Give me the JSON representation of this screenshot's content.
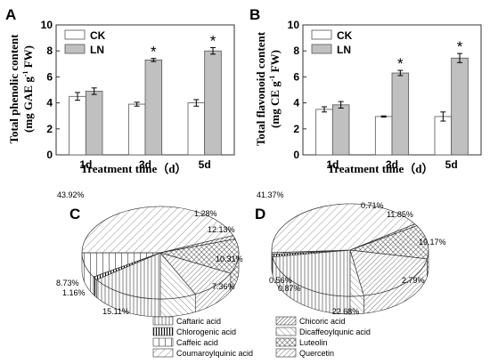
{
  "chart_data": [
    {
      "panel": "A",
      "type": "bar",
      "categories": [
        "1d",
        "3d",
        "5d"
      ],
      "series": [
        {
          "name": "CK",
          "values": [
            4.5,
            3.9,
            4.0
          ],
          "errors": [
            0.3,
            0.15,
            0.25
          ],
          "fill": "#ffffff"
        },
        {
          "name": "LN",
          "values": [
            4.9,
            7.3,
            8.0
          ],
          "errors": [
            0.25,
            0.12,
            0.25
          ],
          "fill": "#c0c0c0"
        }
      ],
      "significance": [
        "",
        "*",
        "*"
      ],
      "xlabel": "Treatment time（d）",
      "ylabel": "Total phenolic content",
      "ylabel2": "(mg GAE g",
      "ylabel_sup": "-1",
      "ylabel3": " FW)",
      "ylim": [
        0,
        10
      ],
      "yticks": [
        "0",
        "2",
        "4",
        "6",
        "8",
        "10"
      ],
      "legend_position": "top-left"
    },
    {
      "panel": "B",
      "type": "bar",
      "categories": [
        "1d",
        "3d",
        "5d"
      ],
      "series": [
        {
          "name": "CK",
          "values": [
            3.5,
            2.95,
            2.95
          ],
          "errors": [
            0.2,
            0.05,
            0.35
          ],
          "fill": "#ffffff"
        },
        {
          "name": "LN",
          "values": [
            3.85,
            6.3,
            7.45
          ],
          "errors": [
            0.25,
            0.2,
            0.35
          ],
          "fill": "#c0c0c0"
        }
      ],
      "significance": [
        "",
        "*",
        "*"
      ],
      "xlabel": "Treatment time（d）",
      "ylabel": "Total flavonoid content",
      "ylabel2": "(mg CE g",
      "ylabel_sup": "-1",
      "ylabel3": " FW)",
      "ylim": [
        0,
        10
      ],
      "yticks": [
        "0",
        "2",
        "4",
        "6",
        "8",
        "10"
      ],
      "legend_position": "top-left"
    },
    {
      "panel": "C",
      "type": "pie",
      "slices": [
        {
          "label": "Caftaric acid",
          "value": 15.11,
          "text": "15.11%"
        },
        {
          "label": "Chlorogenic acid",
          "value": 1.16,
          "text": "1.16%"
        },
        {
          "label": "Caffeic acid",
          "value": 8.73,
          "text": "8.73%"
        },
        {
          "label": "Coumaroylquinic acid",
          "value": 43.92,
          "text": "43.92%"
        },
        {
          "label": "Chicoric acid",
          "value": 1.28,
          "text": "1.28%"
        },
        {
          "label": "Luteolin",
          "value": 12.13,
          "text": "12.13%"
        },
        {
          "label": "Quercetin",
          "value": 10.31,
          "text": "10.31%"
        },
        {
          "label": "Dicaffeoylqunic acid",
          "value": 7.36,
          "text": "7.36%"
        }
      ]
    },
    {
      "panel": "D",
      "type": "pie",
      "slices": [
        {
          "label": "Caftaric acid",
          "value": 22.68,
          "text": "22.68%"
        },
        {
          "label": "Chlorogenic acid",
          "value": 0.87,
          "text": "0.87%"
        },
        {
          "label": "Caffeic acid",
          "value": 0.56,
          "text": "0.56%"
        },
        {
          "label": "Coumaroylquinic acid",
          "value": 41.37,
          "text": "41.37%"
        },
        {
          "label": "Chicoric acid",
          "value": 0.71,
          "text": "0.71%"
        },
        {
          "label": "Luteolin",
          "value": 11.85,
          "text": "11.85%"
        },
        {
          "label": "Quercetin",
          "value": 19.17,
          "text": "19.17%"
        },
        {
          "label": "Dicaffeoylqunic acid",
          "value": 2.79,
          "text": "2.79%"
        }
      ]
    }
  ],
  "pie_legend": [
    {
      "label": "Caftaric acid",
      "pattern": "vlines"
    },
    {
      "label": "Chicoric acid",
      "pattern": "diag-dense"
    },
    {
      "label": "Chlorogenic acid",
      "pattern": "vlines-bold"
    },
    {
      "label": "Dicaffeoylqunic acid",
      "pattern": "diag-light"
    },
    {
      "label": "Caffeic acid",
      "pattern": "vlines-wide"
    },
    {
      "label": "Luteolin",
      "pattern": "crosshatch"
    },
    {
      "label": "Coumaroylquinic acid",
      "pattern": "diag-sparse"
    },
    {
      "label": "Quercetin",
      "pattern": "diag-medium"
    }
  ],
  "colors": {
    "ck": "#ffffff",
    "ln": "#c0c0c0",
    "stroke": "#333333"
  }
}
